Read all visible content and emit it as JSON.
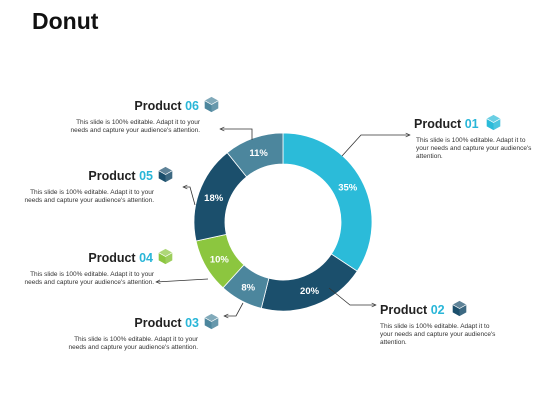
{
  "title": "Donut",
  "chart_data": {
    "type": "pie",
    "variant": "donut",
    "categories": [
      "Product 01",
      "Product 02",
      "Product 03",
      "Product 04",
      "Product 05",
      "Product 06"
    ],
    "values": [
      35,
      20,
      8,
      10,
      18,
      11
    ],
    "labels": [
      "35%",
      "20%",
      "8%",
      "10%",
      "18%",
      "11%"
    ],
    "colors": [
      "#2bbbd9",
      "#1b4f6c",
      "#4c869d",
      "#8cc63f",
      "#1b4f6c",
      "#4c869d"
    ]
  },
  "products": [
    {
      "name": "Product",
      "number": "01",
      "icon": "cube-icon",
      "icon_color": "#2bbbd9",
      "description": "This slide is 100% editable. Adapt it to your needs and capture your audience's attention."
    },
    {
      "name": "Product",
      "number": "02",
      "icon": "cube-icon",
      "icon_color": "#1b4f6c",
      "description": "This slide is 100% editable. Adapt it to your needs and capture your audience's attention."
    },
    {
      "name": "Product",
      "number": "03",
      "icon": "cube-icon",
      "icon_color": "#4c869d",
      "description": "This slide is 100% editable. Adapt it to your needs and capture your audience's attention."
    },
    {
      "name": "Product",
      "number": "04",
      "icon": "cube-icon",
      "icon_color": "#8cc63f",
      "description": "This slide is 100% editable. Adapt it to your needs and capture your audience's attention."
    },
    {
      "name": "Product",
      "number": "05",
      "icon": "cube-icon",
      "icon_color": "#1b4f6c",
      "description": "This slide is 100% editable. Adapt it to your needs and capture your audience's attention."
    },
    {
      "name": "Product",
      "number": "06",
      "icon": "cube-icon",
      "icon_color": "#4c869d",
      "description": "This slide is 100% editable. Adapt it to your needs and capture your audience's attention."
    }
  ]
}
